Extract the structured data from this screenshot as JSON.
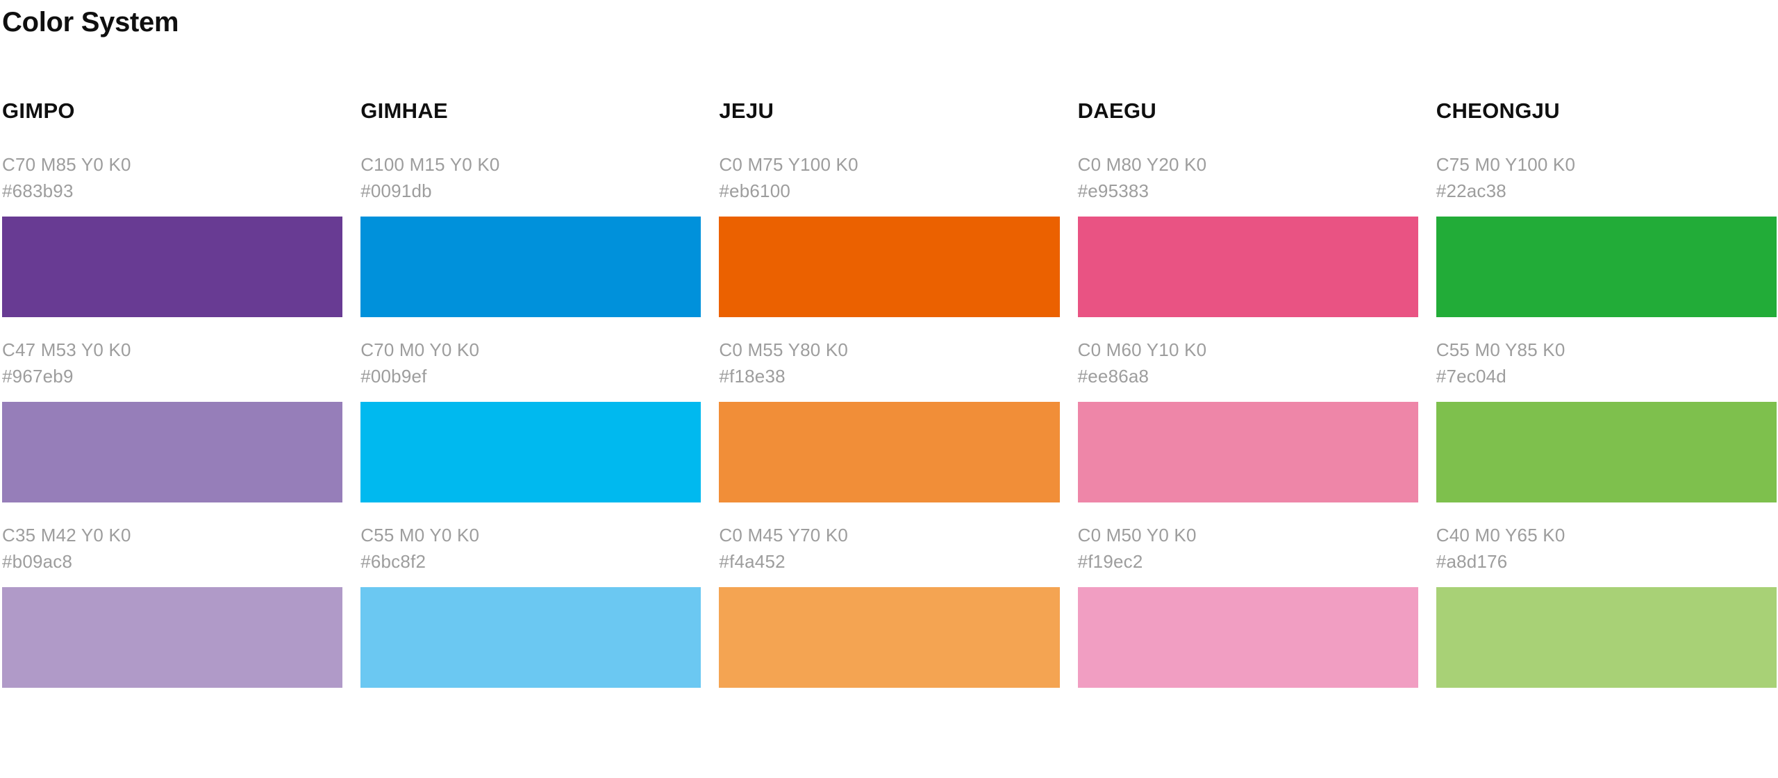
{
  "page": {
    "title": "Color System"
  },
  "text_colors": {
    "heading": "#0f0f0f",
    "label": "#9d9d9d"
  },
  "palette_groups": [
    {
      "name": "GIMPO",
      "colors": [
        {
          "cmyk": "C70 M85 Y0 K0",
          "hex": "#683b93"
        },
        {
          "cmyk": "C47 M53 Y0 K0",
          "hex": "#967eb9"
        },
        {
          "cmyk": "C35 M42 Y0 K0",
          "hex": "#b09ac8"
        }
      ]
    },
    {
      "name": "GIMHAE",
      "colors": [
        {
          "cmyk": "C100 M15 Y0 K0",
          "hex": "#0091db"
        },
        {
          "cmyk": "C70 M0 Y0 K0",
          "hex": "#00b9ef"
        },
        {
          "cmyk": "C55 M0 Y0 K0",
          "hex": "#6bc8f2"
        }
      ]
    },
    {
      "name": "JEJU",
      "colors": [
        {
          "cmyk": "C0 M75 Y100 K0",
          "hex": "#eb6100"
        },
        {
          "cmyk": "C0 M55 Y80 K0",
          "hex": "#f18e38"
        },
        {
          "cmyk": "C0 M45 Y70 K0",
          "hex": "#f4a452"
        }
      ]
    },
    {
      "name": "DAEGU",
      "colors": [
        {
          "cmyk": "C0 M80 Y20 K0",
          "hex": "#e95383"
        },
        {
          "cmyk": "C0 M60 Y10 K0",
          "hex": "#ee86a8"
        },
        {
          "cmyk": "C0 M50 Y0 K0",
          "hex": "#f19ec2"
        }
      ]
    },
    {
      "name": "CHEONGJU",
      "colors": [
        {
          "cmyk": "C75 M0 Y100 K0",
          "hex": "#22ac38"
        },
        {
          "cmyk": "C55 M0 Y85 K0",
          "hex": "#7ec04d"
        },
        {
          "cmyk": "C40 M0 Y65 K0",
          "hex": "#a8d176"
        }
      ]
    }
  ]
}
